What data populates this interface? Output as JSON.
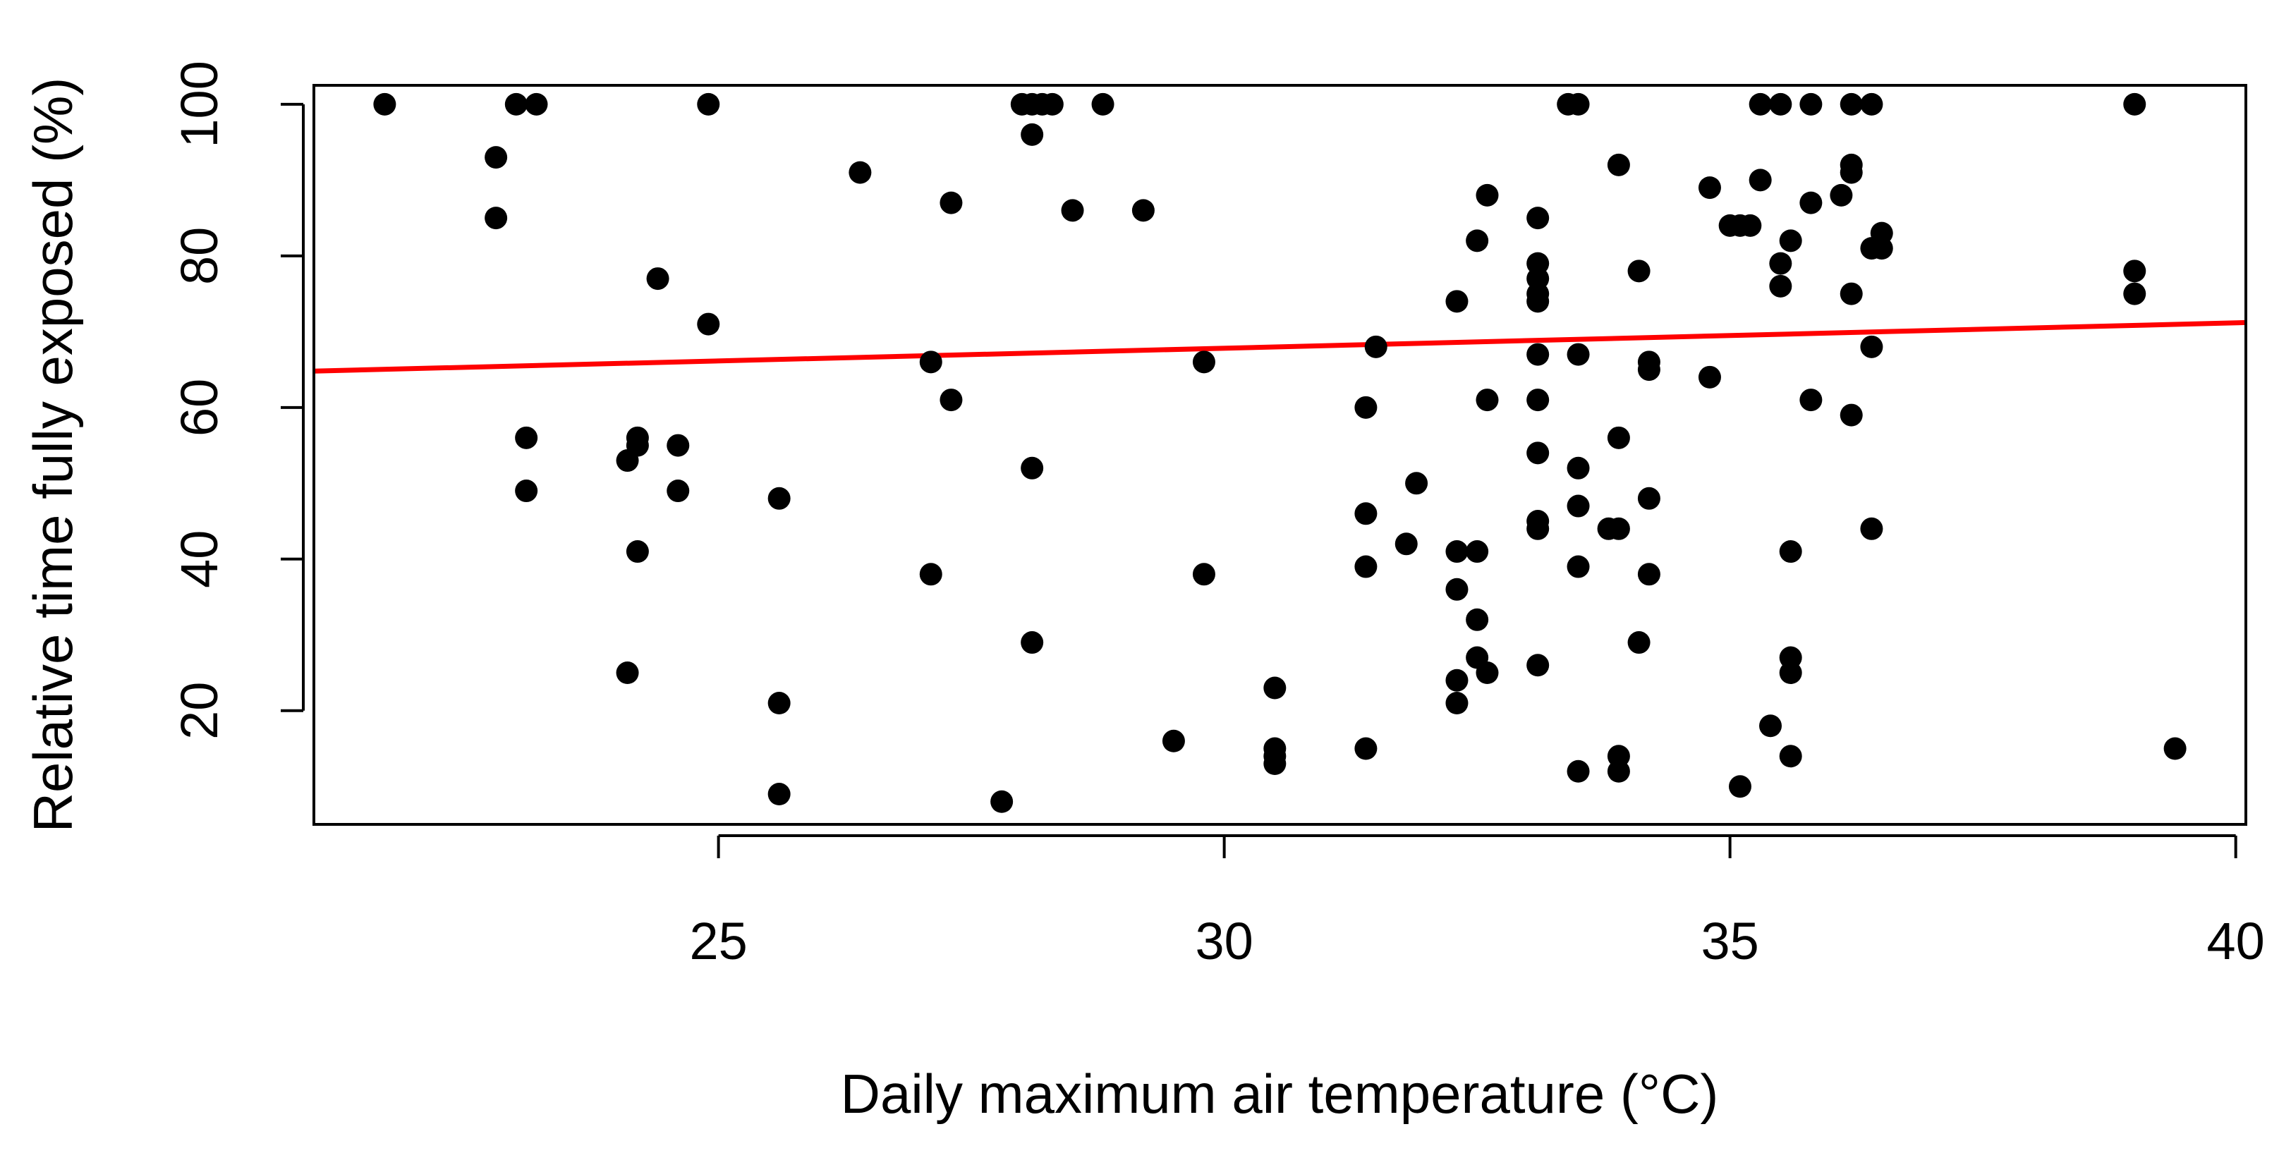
{
  "chart_data": {
    "type": "scatter",
    "title": "",
    "xlabel": "Daily maximum air temperature (°C)",
    "ylabel": "Relative time fully exposed (%)",
    "xlim": [
      21.0,
      40.1
    ],
    "ylim": [
      5.0,
      102.5
    ],
    "x_ticks": [
      25,
      30,
      35,
      40
    ],
    "x_tick_labels": [
      "25",
      "30",
      "35",
      "40"
    ],
    "y_ticks": [
      20,
      40,
      60,
      80,
      100
    ],
    "y_tick_labels": [
      "20",
      "40",
      "60",
      "80",
      "100"
    ],
    "grid": false,
    "legend": "none",
    "point_color": "#000000",
    "trend_color": "#ff0000",
    "trend_line": {
      "x": [
        21.0,
        40.1
      ],
      "y": [
        64.8,
        71.2
      ]
    },
    "points": [
      [
        21.7,
        100
      ],
      [
        22.8,
        93
      ],
      [
        22.8,
        85
      ],
      [
        23.0,
        100
      ],
      [
        23.2,
        100
      ],
      [
        23.1,
        56
      ],
      [
        23.1,
        49
      ],
      [
        24.1,
        53
      ],
      [
        24.2,
        55
      ],
      [
        24.2,
        56
      ],
      [
        24.2,
        41
      ],
      [
        24.1,
        25
      ],
      [
        24.4,
        77
      ],
      [
        24.6,
        55
      ],
      [
        24.6,
        49
      ],
      [
        24.9,
        100
      ],
      [
        24.9,
        71
      ],
      [
        25.6,
        48
      ],
      [
        25.6,
        21
      ],
      [
        25.6,
        9
      ],
      [
        26.4,
        91
      ],
      [
        27.1,
        66
      ],
      [
        27.3,
        61
      ],
      [
        27.3,
        87
      ],
      [
        27.1,
        38
      ],
      [
        27.8,
        8
      ],
      [
        28.0,
        100
      ],
      [
        28.1,
        100
      ],
      [
        28.2,
        100
      ],
      [
        28.3,
        100
      ],
      [
        28.1,
        96
      ],
      [
        28.1,
        52
      ],
      [
        28.1,
        29
      ],
      [
        28.5,
        86
      ],
      [
        28.8,
        100
      ],
      [
        29.2,
        86
      ],
      [
        29.5,
        16
      ],
      [
        29.8,
        66
      ],
      [
        29.8,
        38
      ],
      [
        30.5,
        23
      ],
      [
        30.5,
        15
      ],
      [
        30.5,
        14
      ],
      [
        30.5,
        13
      ],
      [
        31.4,
        60
      ],
      [
        31.5,
        68
      ],
      [
        31.4,
        46
      ],
      [
        31.4,
        39
      ],
      [
        31.4,
        15
      ],
      [
        31.8,
        42
      ],
      [
        31.9,
        50
      ],
      [
        32.3,
        74
      ],
      [
        32.3,
        41
      ],
      [
        32.3,
        36
      ],
      [
        32.3,
        24
      ],
      [
        32.3,
        21
      ],
      [
        32.5,
        82
      ],
      [
        32.5,
        41
      ],
      [
        32.5,
        32
      ],
      [
        32.5,
        27
      ],
      [
        32.6,
        88
      ],
      [
        32.6,
        61
      ],
      [
        32.6,
        25
      ],
      [
        33.1,
        85
      ],
      [
        33.1,
        79
      ],
      [
        33.1,
        77
      ],
      [
        33.1,
        75
      ],
      [
        33.1,
        74
      ],
      [
        33.1,
        67
      ],
      [
        33.1,
        61
      ],
      [
        33.1,
        54
      ],
      [
        33.1,
        45
      ],
      [
        33.1,
        44
      ],
      [
        33.1,
        26
      ],
      [
        33.4,
        100
      ],
      [
        33.5,
        100
      ],
      [
        33.5,
        67
      ],
      [
        33.5,
        52
      ],
      [
        33.5,
        47
      ],
      [
        33.5,
        39
      ],
      [
        33.5,
        12
      ],
      [
        33.8,
        44
      ],
      [
        33.9,
        44
      ],
      [
        33.9,
        92
      ],
      [
        33.9,
        56
      ],
      [
        33.9,
        14
      ],
      [
        33.9,
        12
      ],
      [
        34.1,
        78
      ],
      [
        34.1,
        29
      ],
      [
        34.2,
        66
      ],
      [
        34.2,
        65
      ],
      [
        34.2,
        48
      ],
      [
        34.2,
        38
      ],
      [
        34.8,
        89
      ],
      [
        34.8,
        64
      ],
      [
        35.0,
        84
      ],
      [
        35.1,
        84
      ],
      [
        35.2,
        84
      ],
      [
        35.1,
        10
      ],
      [
        35.3,
        90
      ],
      [
        35.3,
        100
      ],
      [
        35.4,
        18
      ],
      [
        35.5,
        100
      ],
      [
        35.5,
        79
      ],
      [
        35.5,
        76
      ],
      [
        35.6,
        82
      ],
      [
        35.6,
        41
      ],
      [
        35.6,
        27
      ],
      [
        35.6,
        25
      ],
      [
        35.6,
        14
      ],
      [
        35.8,
        100
      ],
      [
        35.8,
        87
      ],
      [
        35.8,
        61
      ],
      [
        36.1,
        88
      ],
      [
        36.2,
        92
      ],
      [
        36.2,
        91
      ],
      [
        36.2,
        75
      ],
      [
        36.2,
        59
      ],
      [
        36.2,
        100
      ],
      [
        36.4,
        100
      ],
      [
        36.4,
        68
      ],
      [
        36.4,
        44
      ],
      [
        36.4,
        81
      ],
      [
        36.5,
        83
      ],
      [
        36.5,
        81
      ],
      [
        39.0,
        100
      ],
      [
        39.0,
        78
      ],
      [
        39.0,
        75
      ],
      [
        39.4,
        15
      ]
    ]
  }
}
